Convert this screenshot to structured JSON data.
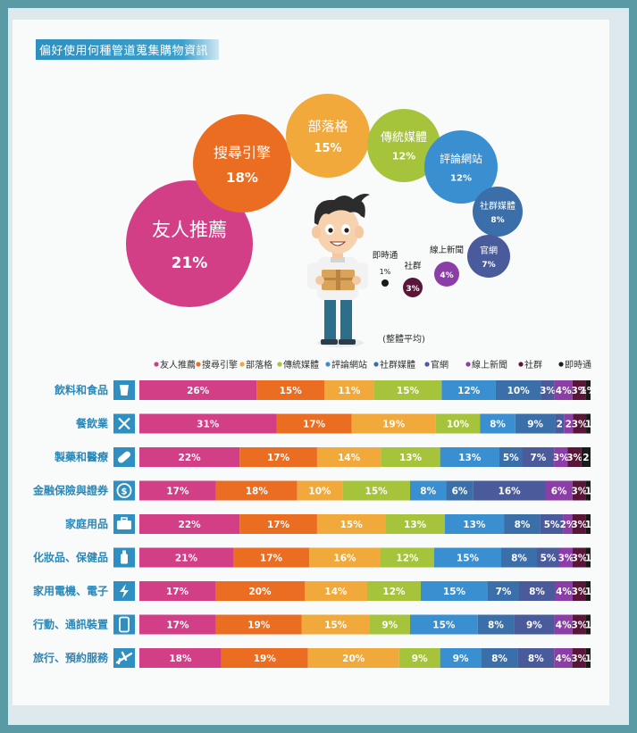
{
  "title": "偏好使用何種管道蒐集購物資訊",
  "avg_note": "(整體平均)",
  "colors": [
    "#d23f87",
    "#ea6d21",
    "#f0a93a",
    "#a5c43b",
    "#3a8fd0",
    "#3a6faa",
    "#4a5b9c",
    "#8b3ea8",
    "#5a1638",
    "#1a1a1a"
  ],
  "chart_data": [
    {
      "type": "bubble",
      "description_label": "(整體平均)",
      "categories": [
        "友人推薦",
        "搜尋引擎",
        "部落格",
        "傳統媒體",
        "評論網站",
        "社群媒體",
        "官網",
        "線上新聞",
        "社群",
        "即時通"
      ],
      "values": [
        21,
        18,
        15,
        12,
        12,
        8,
        7,
        4,
        3,
        1
      ],
      "labels": [
        "21%",
        "18%",
        "15%",
        "12%",
        "12%",
        "8%",
        "7%",
        "4%",
        "3%",
        "1%"
      ]
    },
    {
      "type": "bar",
      "stacked": true,
      "orientation": "horizontal",
      "legend": [
        "友人推薦",
        "搜尋引擎",
        "部落格",
        "傳統媒體",
        "評論網站",
        "社群媒體",
        "官網",
        "線上新聞",
        "社群",
        "即時通"
      ],
      "legend_position": "top",
      "categories": [
        "飲料和食品",
        "餐飲業",
        "製藥和醫療",
        "金融保險與證券",
        "家庭用品",
        "化妝品、保健品",
        "家用電機、電子",
        "行動、通訊裝置",
        "旅行、預約服務"
      ],
      "icons": [
        "cup-icon",
        "utensils-icon",
        "pill-icon",
        "dollar-icon",
        "briefcase-icon",
        "bottle-icon",
        "lightning-icon",
        "phone-icon",
        "airplane-icon"
      ],
      "series": [
        {
          "name": "友人推薦",
          "values": [
            26,
            31,
            22,
            17,
            22,
            21,
            17,
            17,
            18
          ]
        },
        {
          "name": "搜尋引擎",
          "values": [
            15,
            17,
            17,
            18,
            17,
            17,
            20,
            19,
            19
          ]
        },
        {
          "name": "部落格",
          "values": [
            11,
            19,
            14,
            10,
            15,
            16,
            14,
            15,
            20
          ]
        },
        {
          "name": "傳統媒體",
          "values": [
            15,
            10,
            13,
            15,
            13,
            12,
            12,
            9,
            9
          ]
        },
        {
          "name": "評論網站",
          "values": [
            12,
            8,
            13,
            8,
            13,
            15,
            15,
            15,
            9
          ]
        },
        {
          "name": "社群媒體",
          "values": [
            10,
            9,
            5,
            6,
            8,
            8,
            7,
            8,
            8
          ]
        },
        {
          "name": "官網",
          "values": [
            3,
            2,
            7,
            16,
            5,
            5,
            8,
            9,
            8
          ]
        },
        {
          "name": "線上新聞",
          "values": [
            4,
            2,
            3,
            6,
            2,
            3,
            4,
            4,
            4
          ]
        },
        {
          "name": "社群",
          "values": [
            3,
            3,
            3,
            3,
            3,
            3,
            3,
            3,
            3
          ]
        },
        {
          "name": "即時通",
          "values": [
            1,
            1,
            2,
            1,
            1,
            1,
            1,
            1,
            1
          ]
        }
      ],
      "segment_labels": [
        [
          "26%",
          "15%",
          "11%",
          "15%",
          "12%",
          "10%",
          "3%",
          "4%",
          "3%",
          "1%"
        ],
        [
          "31%",
          "17%",
          "19%",
          "10%",
          "8%",
          "9%",
          "2",
          "2",
          "3%",
          "1"
        ],
        [
          "22%",
          "17%",
          "14%",
          "13%",
          "13%",
          "5%",
          "7%",
          "3%",
          "3%",
          "2"
        ],
        [
          "17%",
          "18%",
          "10%",
          "15%",
          "8%",
          "6%",
          "16%",
          "6%",
          "3%",
          "1"
        ],
        [
          "22%",
          "17%",
          "15%",
          "13%",
          "13%",
          "8%",
          "5%",
          "2%",
          "3%",
          "1"
        ],
        [
          "21%",
          "17%",
          "16%",
          "12%",
          "15%",
          "8%",
          "5%",
          "3%",
          "3%",
          "1"
        ],
        [
          "17%",
          "20%",
          "14%",
          "12%",
          "15%",
          "7%",
          "8%",
          "4%",
          "3%",
          "1"
        ],
        [
          "17%",
          "19%",
          "15%",
          "9%",
          "15%",
          "8%",
          "9%",
          "4%",
          "3%",
          "1"
        ],
        [
          "18%",
          "19%",
          "20%",
          "9%",
          "9%",
          "8%",
          "8%",
          "4%",
          "3%",
          "1"
        ]
      ]
    }
  ]
}
